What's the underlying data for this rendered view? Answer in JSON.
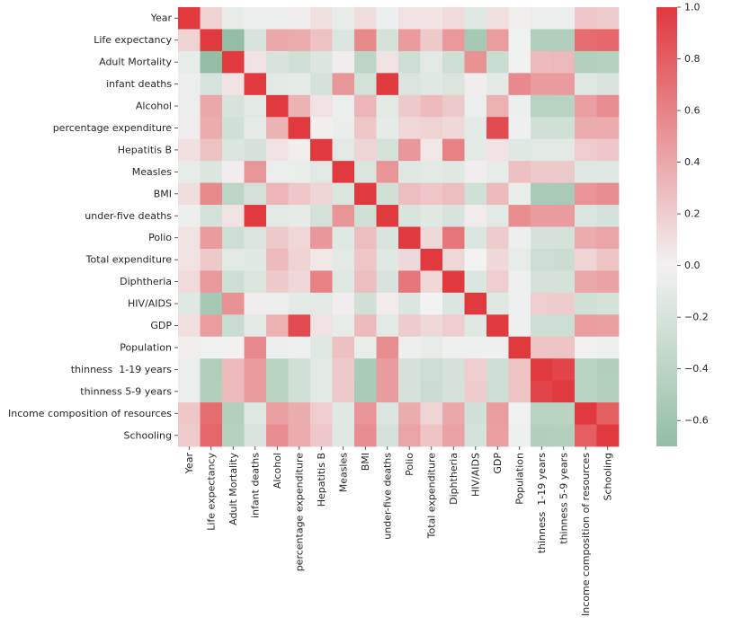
{
  "chart_data": {
    "type": "heatmap",
    "title": "",
    "xlabel": "",
    "ylabel": "",
    "rows": [
      "Year",
      "Life expectancy",
      "Adult Mortality",
      "infant deaths",
      "Alcohol",
      "percentage expenditure",
      "Hepatitis B",
      "Measles",
      "BMI",
      "under-five deaths",
      "Polio",
      "Total expenditure",
      "Diphtheria",
      "HIV/AIDS",
      "GDP",
      "Population",
      "thinness  1-19 years",
      "thinness 5-9 years",
      "Income composition of resources",
      "Schooling"
    ],
    "columns": [
      "Year",
      "Life expectancy",
      "Adult Mortality",
      "infant deaths",
      "Alcohol",
      "percentage expenditure",
      "Hepatitis B",
      "Measles",
      "BMI",
      "under-five deaths",
      "Polio",
      "Total expenditure",
      "Diphtheria",
      "HIV/AIDS",
      "GDP",
      "Population",
      "thinness  1-19 years",
      "thinness 5-9 years",
      "Income composition of resources",
      "Schooling"
    ],
    "values": [
      [
        1.0,
        0.17,
        -0.08,
        -0.04,
        -0.05,
        0.03,
        0.1,
        -0.08,
        0.11,
        -0.04,
        0.09,
        0.09,
        0.13,
        -0.14,
        0.1,
        0.02,
        -0.05,
        -0.05,
        0.24,
        0.21
      ],
      [
        0.17,
        1.0,
        -0.7,
        -0.2,
        0.4,
        0.38,
        0.26,
        -0.16,
        0.57,
        -0.22,
        0.47,
        0.22,
        0.48,
        -0.56,
        0.46,
        -0.02,
        -0.48,
        -0.47,
        0.72,
        0.75
      ],
      [
        -0.08,
        -0.7,
        1.0,
        0.08,
        -0.2,
        -0.24,
        -0.16,
        0.03,
        -0.39,
        0.09,
        -0.27,
        -0.12,
        -0.27,
        0.52,
        -0.3,
        -0.01,
        0.3,
        0.31,
        -0.46,
        -0.45
      ],
      [
        -0.04,
        -0.2,
        0.08,
        1.0,
        -0.12,
        -0.09,
        -0.22,
        0.5,
        -0.23,
        1.0,
        -0.17,
        -0.13,
        -0.18,
        0.03,
        -0.11,
        0.56,
        0.47,
        0.47,
        -0.15,
        -0.19
      ],
      [
        -0.05,
        0.4,
        -0.2,
        -0.12,
        1.0,
        0.34,
        0.09,
        -0.05,
        0.33,
        -0.11,
        0.22,
        0.3,
        0.22,
        -0.05,
        0.35,
        -0.04,
        -0.43,
        -0.42,
        0.45,
        0.55
      ],
      [
        0.03,
        0.38,
        -0.24,
        -0.09,
        0.34,
        1.0,
        0.02,
        -0.06,
        0.23,
        -0.09,
        0.15,
        0.17,
        0.14,
        -0.1,
        0.9,
        -0.03,
        -0.25,
        -0.25,
        0.38,
        0.39
      ],
      [
        0.1,
        0.26,
        -0.16,
        -0.22,
        0.09,
        0.02,
        1.0,
        -0.12,
        0.16,
        -0.23,
        0.49,
        0.06,
        0.61,
        -0.11,
        0.08,
        -0.13,
        -0.12,
        -0.12,
        0.2,
        0.23
      ],
      [
        -0.08,
        -0.16,
        0.03,
        0.5,
        -0.05,
        -0.06,
        -0.12,
        1.0,
        -0.18,
        0.51,
        -0.14,
        -0.11,
        -0.14,
        0.03,
        -0.08,
        0.27,
        0.22,
        0.22,
        -0.13,
        -0.14
      ],
      [
        0.11,
        0.57,
        -0.39,
        -0.23,
        0.33,
        0.23,
        0.16,
        -0.18,
        1.0,
        -0.24,
        0.28,
        0.24,
        0.28,
        -0.24,
        0.3,
        -0.07,
        -0.53,
        -0.54,
        0.51,
        0.55
      ],
      [
        -0.04,
        -0.22,
        0.09,
        1.0,
        -0.11,
        -0.09,
        -0.23,
        0.51,
        -0.24,
        1.0,
        -0.19,
        -0.13,
        -0.2,
        0.04,
        -0.11,
        0.54,
        0.47,
        0.47,
        -0.16,
        -0.21
      ],
      [
        0.09,
        0.47,
        -0.27,
        -0.17,
        0.22,
        0.15,
        0.49,
        -0.14,
        0.28,
        -0.19,
        1.0,
        0.14,
        0.67,
        -0.16,
        0.21,
        -0.04,
        -0.22,
        -0.22,
        0.38,
        0.42
      ],
      [
        0.09,
        0.22,
        -0.12,
        -0.13,
        0.3,
        0.17,
        0.06,
        -0.11,
        0.24,
        -0.13,
        0.14,
        1.0,
        0.15,
        -0.0,
        0.14,
        -0.08,
        -0.28,
        -0.29,
        0.16,
        0.25
      ],
      [
        0.13,
        0.48,
        -0.27,
        -0.18,
        0.22,
        0.14,
        0.61,
        -0.14,
        0.28,
        -0.2,
        0.67,
        0.15,
        1.0,
        -0.16,
        0.2,
        -0.03,
        -0.23,
        -0.22,
        0.4,
        0.43
      ],
      [
        -0.14,
        -0.56,
        0.52,
        0.03,
        -0.05,
        -0.1,
        -0.11,
        0.03,
        -0.24,
        0.04,
        -0.16,
        -0.0,
        -0.16,
        1.0,
        -0.13,
        -0.03,
        0.2,
        0.21,
        -0.25,
        -0.22
      ],
      [
        0.1,
        0.46,
        -0.3,
        -0.11,
        0.35,
        0.9,
        0.08,
        -0.08,
        0.3,
        -0.11,
        0.21,
        0.14,
        0.2,
        -0.13,
        1.0,
        -0.03,
        -0.28,
        -0.28,
        0.46,
        0.45
      ],
      [
        0.02,
        -0.02,
        -0.01,
        0.56,
        -0.04,
        -0.03,
        -0.13,
        0.27,
        -0.07,
        0.54,
        -0.04,
        -0.08,
        -0.03,
        -0.03,
        -0.03,
        1.0,
        0.25,
        0.25,
        -0.01,
        -0.03
      ],
      [
        -0.05,
        -0.48,
        0.3,
        0.47,
        -0.43,
        -0.25,
        -0.12,
        0.22,
        -0.53,
        0.47,
        -0.22,
        -0.28,
        -0.23,
        0.2,
        -0.28,
        0.25,
        1.0,
        0.94,
        -0.42,
        -0.47
      ],
      [
        -0.05,
        -0.47,
        0.31,
        0.47,
        -0.42,
        -0.25,
        -0.12,
        0.22,
        -0.54,
        0.47,
        -0.22,
        -0.29,
        -0.22,
        0.21,
        -0.28,
        0.25,
        0.94,
        1.0,
        -0.41,
        -0.46
      ],
      [
        0.24,
        0.72,
        -0.46,
        -0.15,
        0.45,
        0.38,
        0.2,
        -0.13,
        0.51,
        -0.16,
        0.38,
        0.16,
        0.4,
        -0.25,
        0.46,
        -0.01,
        -0.42,
        -0.41,
        1.0,
        0.8
      ],
      [
        0.21,
        0.75,
        -0.45,
        -0.19,
        0.55,
        0.39,
        0.23,
        -0.14,
        0.55,
        -0.21,
        0.42,
        0.25,
        0.43,
        -0.22,
        0.45,
        -0.03,
        -0.47,
        -0.46,
        0.8,
        1.0
      ]
    ],
    "vmin": -0.7,
    "vmax": 1.0,
    "center": 0.0,
    "colormap": {
      "low": "#6aa883",
      "mid": "#f2f2f2",
      "high": "#e0393e"
    },
    "colorbar": {
      "ticks": [
        1.0,
        0.8,
        0.6,
        0.4,
        0.2,
        0.0,
        -0.2,
        -0.4,
        -0.6
      ],
      "tick_labels": [
        "1.0",
        "0.8",
        "0.6",
        "0.4",
        "0.2",
        "0.0",
        "−0.2",
        "−0.4",
        "−0.6"
      ],
      "placement": "right"
    },
    "grid": false
  }
}
